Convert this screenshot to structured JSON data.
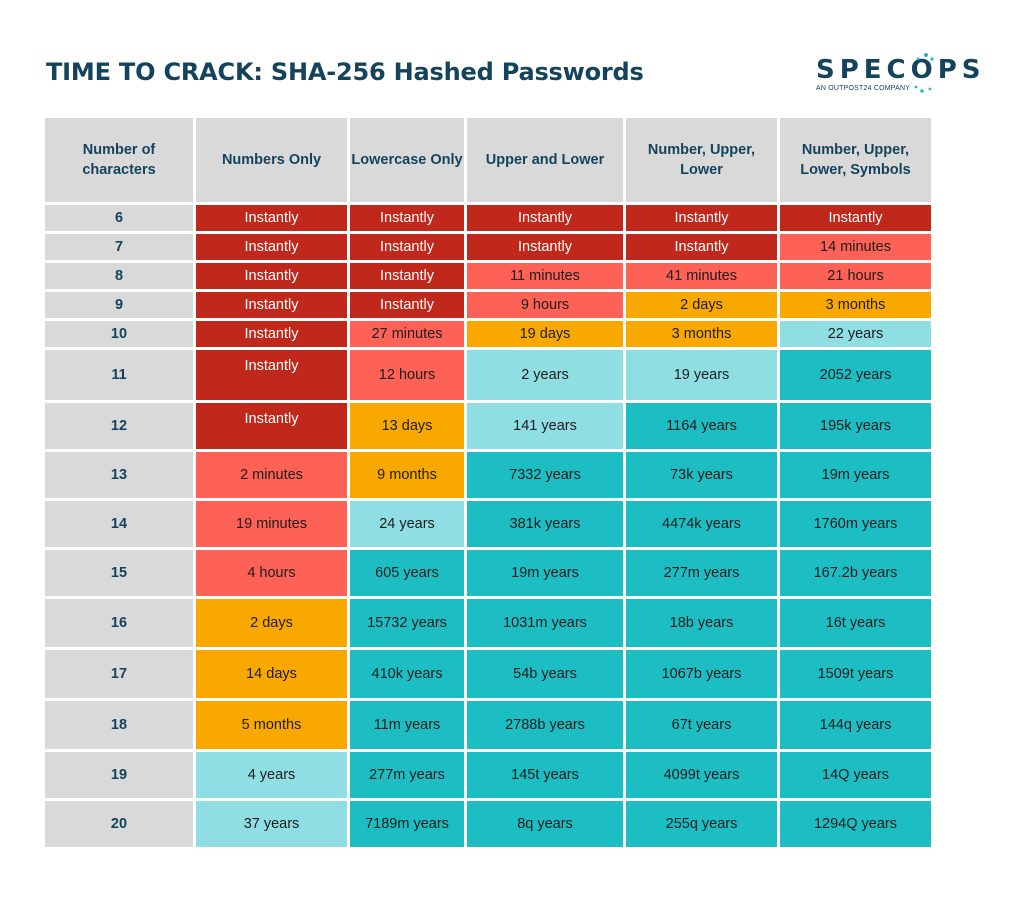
{
  "title": "TIME TO CRACK: SHA-256 Hashed Passwords",
  "logo": {
    "word": "SPECOPS",
    "tagline": "AN OUTPOST24 COMPANY"
  },
  "colors": {
    "instant": "#c0281b",
    "minutes_hours": "#fe6155",
    "days_months": "#f9a800",
    "few_years": "#8fdee4",
    "many_years": "#1dbdc4",
    "header_bg": "#d9d9d9",
    "title_text": "#14435e"
  },
  "table": {
    "headers": [
      "Number of characters",
      "Numbers Only",
      "Lowercase Only",
      "Upper and Lower",
      "Number, Upper, Lower",
      "Number, Upper, Lower, Symbols"
    ],
    "rows": [
      {
        "chars": "6",
        "cells": [
          "Instantly",
          "Instantly",
          "Instantly",
          "Instantly",
          "Instantly"
        ]
      },
      {
        "chars": "7",
        "cells": [
          "Instantly",
          "Instantly",
          "Instantly",
          "Instantly",
          "14 minutes"
        ]
      },
      {
        "chars": "8",
        "cells": [
          "Instantly",
          "Instantly",
          "11 minutes",
          "41 minutes",
          "21 hours"
        ]
      },
      {
        "chars": "9",
        "cells": [
          "Instantly",
          "Instantly",
          "9 hours",
          "2 days",
          "3 months"
        ]
      },
      {
        "chars": "10",
        "cells": [
          "Instantly",
          "27 minutes",
          "19 days",
          "3 months",
          "22 years"
        ]
      },
      {
        "chars": "11",
        "cells": [
          "Instantly",
          "12 hours",
          "2 years",
          "19 years",
          "2052 years"
        ]
      },
      {
        "chars": "12",
        "cells": [
          "Instantly",
          "13 days",
          "141 years",
          "1164 years",
          "195k years"
        ]
      },
      {
        "chars": "13",
        "cells": [
          "2 minutes",
          "9 months",
          "7332 years",
          "73k years",
          "19m years"
        ]
      },
      {
        "chars": "14",
        "cells": [
          "19 minutes",
          "24 years",
          "381k years",
          "4474k years",
          "1760m years"
        ]
      },
      {
        "chars": "15",
        "cells": [
          "4 hours",
          "605 years",
          "19m years",
          "277m years",
          "167.2b years"
        ]
      },
      {
        "chars": "16",
        "cells": [
          "2 days",
          "15732 years",
          "1031m years",
          "18b years",
          "16t years"
        ]
      },
      {
        "chars": "17",
        "cells": [
          "14 days",
          "410k years",
          "54b years",
          "1067b years",
          "1509t years"
        ]
      },
      {
        "chars": "18",
        "cells": [
          "5 months",
          "11m years",
          "2788b years",
          "67t years",
          "144q years"
        ]
      },
      {
        "chars": "19",
        "cells": [
          "4 years",
          "277m years",
          "145t years",
          "4099t years",
          "14Q years"
        ]
      },
      {
        "chars": "20",
        "cells": [
          "37 years",
          "7189m years",
          "8q years",
          "255q years",
          "1294Q years"
        ]
      }
    ],
    "cell_colors": [
      [
        "instant",
        "instant",
        "instant",
        "instant",
        "instant"
      ],
      [
        "instant",
        "instant",
        "instant",
        "instant",
        "minutes_hours"
      ],
      [
        "instant",
        "instant",
        "minutes_hours",
        "minutes_hours",
        "minutes_hours"
      ],
      [
        "instant",
        "instant",
        "minutes_hours",
        "days_months",
        "days_months"
      ],
      [
        "instant",
        "minutes_hours",
        "days_months",
        "days_months",
        "few_years"
      ],
      [
        "instant",
        "minutes_hours",
        "few_years",
        "few_years",
        "many_years"
      ],
      [
        "instant",
        "days_months",
        "few_years",
        "many_years",
        "many_years"
      ],
      [
        "minutes_hours",
        "days_months",
        "many_years",
        "many_years",
        "many_years"
      ],
      [
        "minutes_hours",
        "few_years",
        "many_years",
        "many_years",
        "many_years"
      ],
      [
        "minutes_hours",
        "many_years",
        "many_years",
        "many_years",
        "many_years"
      ],
      [
        "days_months",
        "many_years",
        "many_years",
        "many_years",
        "many_years"
      ],
      [
        "days_months",
        "many_years",
        "many_years",
        "many_years",
        "many_years"
      ],
      [
        "days_months",
        "many_years",
        "many_years",
        "many_years",
        "many_years"
      ],
      [
        "few_years",
        "many_years",
        "many_years",
        "many_years",
        "many_years"
      ],
      [
        "few_years",
        "many_years",
        "many_years",
        "many_years",
        "many_years"
      ]
    ]
  }
}
